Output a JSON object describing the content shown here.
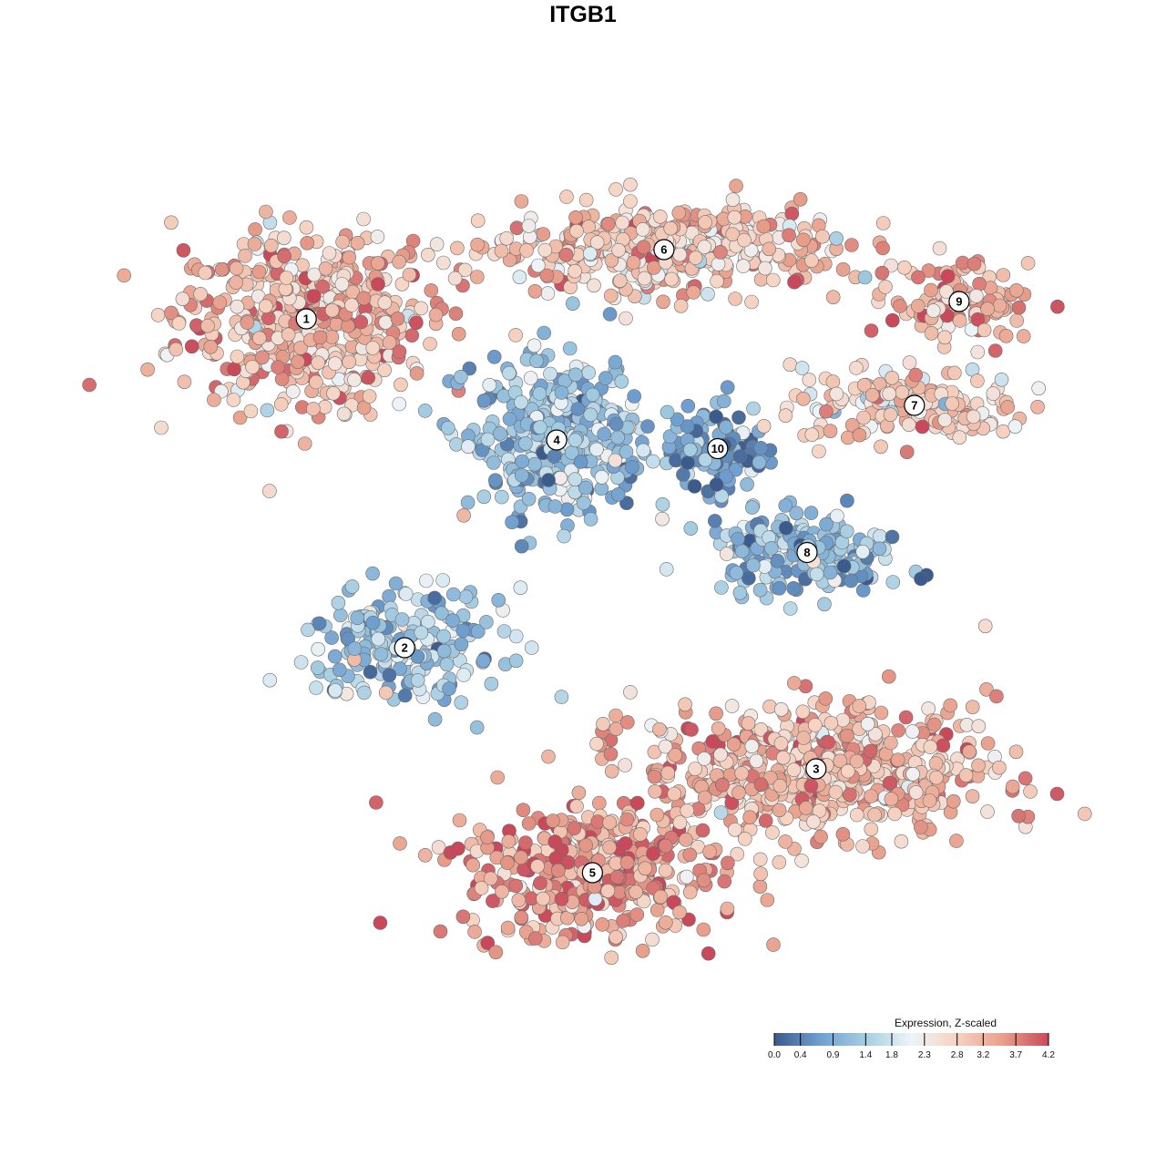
{
  "title": "ITGB1",
  "chart_data": {
    "type": "scatter",
    "title": "ITGB1",
    "xlabel": "",
    "ylabel": "",
    "grid": false,
    "legend_placement": "bottom-right",
    "color_scale": {
      "title": "Expression, Z-scaled",
      "min": 0.0,
      "max": 4.2,
      "ticks": [
        "0.0",
        "0.4",
        "0.9",
        "1.4",
        "1.8",
        "2.3",
        "2.8",
        "3.2",
        "3.7",
        "4.2"
      ],
      "colors": [
        "#3b5b8c",
        "#6f9fd0",
        "#a6cde2",
        "#eef4f8",
        "#f6d2c1",
        "#e8a08c",
        "#c9495b"
      ]
    },
    "clusters": [
      {
        "label": "1",
        "x": -19.5,
        "y": 15.0,
        "spread_x": 6.5,
        "spread_y": 4.5,
        "mean_expression": 3.1,
        "n": 520
      },
      {
        "label": "6",
        "x": 0.5,
        "y": 19.0,
        "spread_x": 8.5,
        "spread_y": 2.3,
        "mean_expression": 2.9,
        "n": 420
      },
      {
        "label": "9",
        "x": 17.0,
        "y": 16.0,
        "spread_x": 3.5,
        "spread_y": 2.0,
        "mean_expression": 3.1,
        "n": 110
      },
      {
        "label": "7",
        "x": 14.5,
        "y": 10.0,
        "spread_x": 6.0,
        "spread_y": 2.0,
        "mean_expression": 2.8,
        "n": 170
      },
      {
        "label": "4",
        "x": -5.5,
        "y": 8.0,
        "spread_x": 4.5,
        "spread_y": 4.0,
        "mean_expression": 1.2,
        "n": 380
      },
      {
        "label": "10",
        "x": 3.5,
        "y": 7.5,
        "spread_x": 2.5,
        "spread_y": 2.5,
        "mean_expression": 0.8,
        "n": 100
      },
      {
        "label": "8",
        "x": 8.5,
        "y": 1.5,
        "spread_x": 5.0,
        "spread_y": 2.0,
        "mean_expression": 1.1,
        "n": 190
      },
      {
        "label": "2",
        "x": -14.0,
        "y": -4.0,
        "spread_x": 5.0,
        "spread_y": 3.0,
        "mean_expression": 1.3,
        "n": 200
      },
      {
        "label": "3",
        "x": 9.0,
        "y": -11.0,
        "spread_x": 9.0,
        "spread_y": 3.5,
        "mean_expression": 3.1,
        "n": 600
      },
      {
        "label": "5",
        "x": -3.5,
        "y": -17.0,
        "spread_x": 6.5,
        "spread_y": 3.5,
        "mean_expression": 3.5,
        "n": 420
      }
    ],
    "xlim": [
      -30,
      25
    ],
    "ylim": [
      -25,
      25
    ]
  }
}
